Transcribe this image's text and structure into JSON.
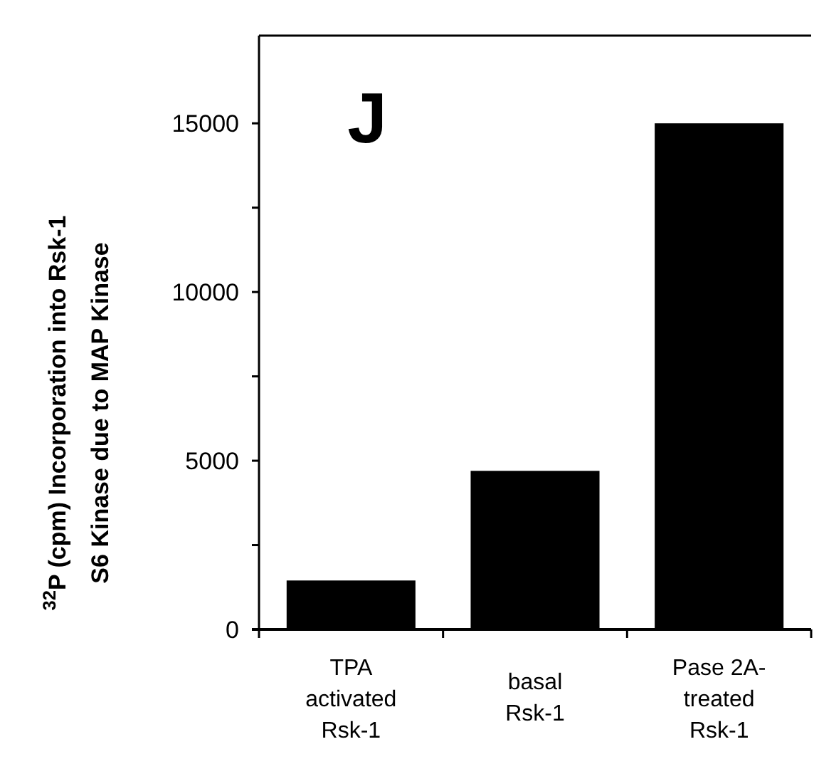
{
  "chart_data": {
    "type": "bar",
    "ylabel": "$^{32}$P (cpm) Incorporation into Rsk-1\nS6 Kinase due to MAP Kinase",
    "categories": [
      "TPA\nactivated\nRsk-1",
      "basal\nRsk-1",
      "Pase 2A-\ntreated\nRsk-1"
    ],
    "values": [
      1450,
      4700,
      15000
    ],
    "color": "#000000",
    "ylim": [
      0,
      17600
    ],
    "yticks": [
      0,
      {
        "value": 2500,
        "label": null
      },
      5000,
      {
        "value": 7500,
        "label": null
      },
      10000,
      {
        "value": 12500,
        "label": null
      },
      15000
    ],
    "annotations": [
      "J"
    ],
    "grid": false
  }
}
